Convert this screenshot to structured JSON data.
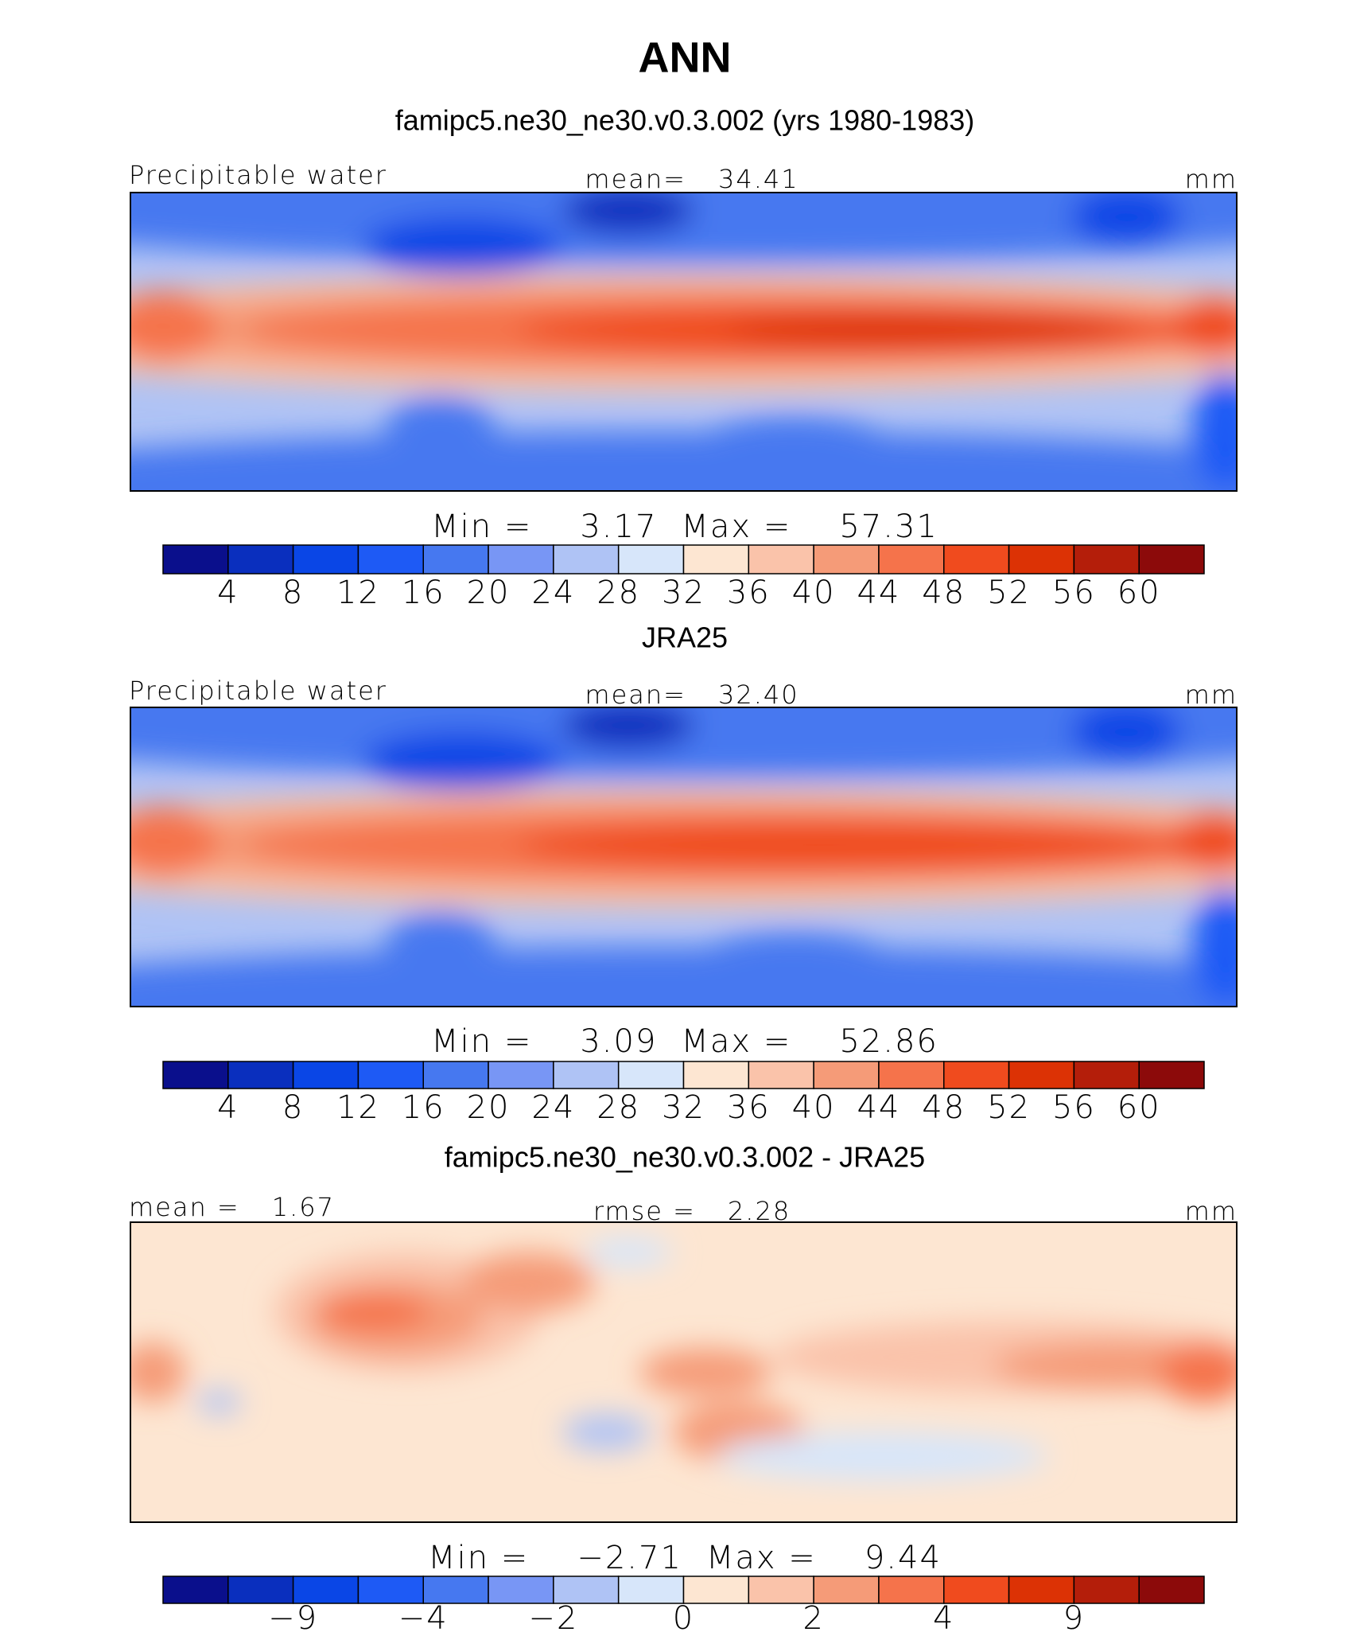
{
  "title": "ANN",
  "chart_data": [
    {
      "type": "contour_map",
      "title": "famipc5.ne30_ne30.v0.3.002 (yrs 1980-1983)",
      "header": {
        "left": "Precipitable water",
        "center": {
          "label": "mean=",
          "value": 34.41
        },
        "right": "mm"
      },
      "stats": [
        {
          "label": "Min =",
          "value": 3.17
        },
        {
          "label": "Max =",
          "value": 57.31
        }
      ],
      "colors": [
        "#0a0f8c",
        "#0a2fbe",
        "#0a46e6",
        "#1e5af5",
        "#4678f0",
        "#7896f5",
        "#afc3f5",
        "#d7e6fa",
        "#fde6d2",
        "#fac3aa",
        "#f59b78",
        "#f5734b",
        "#f04b1e",
        "#dc3205",
        "#b41e0a",
        "#8c0a0a"
      ],
      "levels": [
        4,
        8,
        12,
        16,
        20,
        24,
        28,
        32,
        36,
        40,
        44,
        48,
        52,
        56,
        60
      ]
    },
    {
      "type": "contour_map",
      "title": "JRA25",
      "header": {
        "left": "Precipitable water",
        "center": {
          "label": "mean=",
          "value": 32.4,
          "label_value": "32.40"
        },
        "right": "mm"
      },
      "stats": [
        {
          "label": "Min =",
          "value": 3.09
        },
        {
          "label": "Max =",
          "value": 52.86
        }
      ],
      "colors": [
        "#0a0f8c",
        "#0a2fbe",
        "#0a46e6",
        "#1e5af5",
        "#4678f0",
        "#7896f5",
        "#afc3f5",
        "#d7e6fa",
        "#fde6d2",
        "#fac3aa",
        "#f59b78",
        "#f5734b",
        "#f04b1e",
        "#dc3205",
        "#b41e0a",
        "#8c0a0a"
      ],
      "levels": [
        4,
        8,
        12,
        16,
        20,
        24,
        28,
        32,
        36,
        40,
        44,
        48,
        52,
        56,
        60
      ]
    },
    {
      "type": "contour_map",
      "title": "famipc5.ne30_ne30.v0.3.002 - JRA25",
      "header": {
        "left": {
          "label": "mean =",
          "value": 1.67
        },
        "center": {
          "label": "rmse =",
          "value": 2.28
        },
        "right": "mm"
      },
      "stats": [
        {
          "label": "Min =",
          "value": -2.71,
          "label_value": "−2.71"
        },
        {
          "label": "Max =",
          "value": 9.44
        }
      ],
      "colors": [
        "#0a0f8c",
        "#0a2fbe",
        "#0a46e6",
        "#1e5af5",
        "#4678f0",
        "#7896f5",
        "#afc3f5",
        "#d7e6fa",
        "#fde6d2",
        "#fac3aa",
        "#f59b78",
        "#f5734b",
        "#f04b1e",
        "#dc3205",
        "#b41e0a",
        "#8c0a0a"
      ],
      "levels": [
        null,
        {
          "value": -9,
          "label": "−9"
        },
        null,
        {
          "value": -4,
          "label": "−4"
        },
        null,
        {
          "value": -2,
          "label": "−2"
        },
        null,
        0,
        null,
        2,
        null,
        4,
        null,
        9,
        null
      ]
    }
  ]
}
